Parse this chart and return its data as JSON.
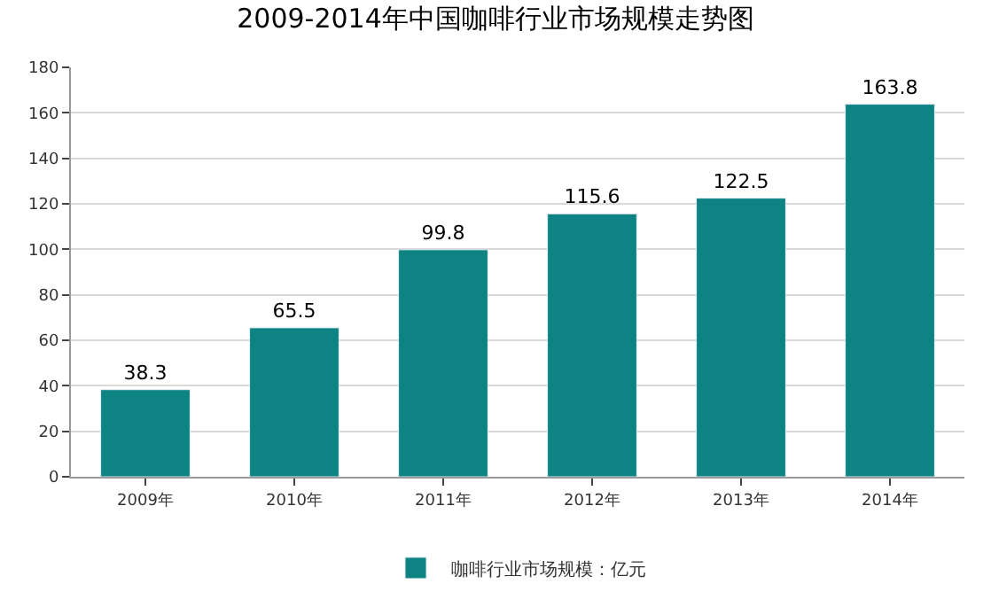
{
  "chart_data": {
    "type": "bar",
    "title": "2009-2014年中国咖啡行业市场规模走势图",
    "categories": [
      "2009年",
      "2010年",
      "2011年",
      "2012年",
      "2013年",
      "2014年"
    ],
    "series": [
      {
        "name": "咖啡行业市场规模：亿元",
        "color": "#0e8383",
        "values": [
          38.3,
          65.5,
          99.8,
          115.6,
          122.5,
          163.8
        ]
      }
    ],
    "ylim": [
      0,
      180
    ],
    "yticks": [
      0,
      20,
      40,
      60,
      80,
      100,
      120,
      140,
      160,
      180
    ],
    "grid": "y",
    "legend": "bottom",
    "data_labels": true
  }
}
